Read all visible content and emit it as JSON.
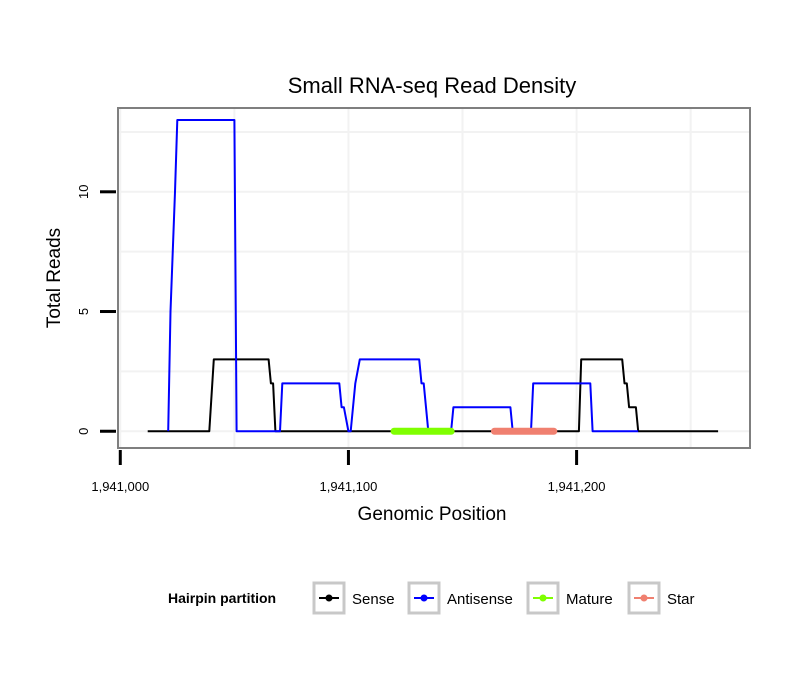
{
  "chart_data": {
    "type": "line",
    "title": "Small RNA-seq Read Density",
    "xlabel": "Genomic Position",
    "ylabel": "Total Reads",
    "xlim": [
      1940999,
      1941276
    ],
    "ylim": [
      -0.7,
      13.5
    ],
    "x_ticks": [
      {
        "value": 1941000,
        "label": "1,941,000"
      },
      {
        "value": 1941100,
        "label": "1,941,100"
      },
      {
        "value": 1941200,
        "label": "1,941,200"
      }
    ],
    "y_ticks": [
      {
        "value": 0,
        "label": "0"
      },
      {
        "value": 5,
        "label": "5"
      },
      {
        "value": 10,
        "label": "10"
      }
    ],
    "grid": true,
    "legend_title": "Hairpin partition",
    "legend_position": "bottom",
    "series": [
      {
        "name": "Sense",
        "color": "#000000",
        "kind": "line",
        "x": [
          1941012,
          1941039,
          1941041,
          1941065,
          1941066,
          1941067,
          1941068,
          1941070,
          1941201,
          1941202,
          1941220,
          1941221,
          1941222,
          1941223,
          1941224,
          1941226,
          1941227,
          1941262
        ],
        "y": [
          0,
          0,
          3,
          3,
          2,
          2,
          0,
          0,
          0,
          3,
          3,
          2,
          2,
          1,
          1,
          1,
          0,
          0
        ]
      },
      {
        "name": "Antisense",
        "color": "#0000ff",
        "kind": "line",
        "x": [
          1941021,
          1941022,
          1941024,
          1941025,
          1941050,
          1941051,
          1941066,
          1941070,
          1941071,
          1941096,
          1941097,
          1941098,
          1941100,
          1941101,
          1941103,
          1941105,
          1941106,
          1941131,
          1941132,
          1941133,
          1941135,
          1941145,
          1941146,
          1941171,
          1941172,
          1941180,
          1941181,
          1941206,
          1941207,
          1941227
        ],
        "y": [
          0,
          5,
          10,
          13,
          13,
          0,
          0,
          0,
          2,
          2,
          1,
          1,
          0,
          0,
          2,
          3,
          3,
          3,
          2,
          2,
          0,
          0,
          1,
          1,
          0,
          0,
          2,
          2,
          0,
          0
        ]
      },
      {
        "name": "Mature",
        "color": "#7fff00",
        "kind": "segment",
        "x": [
          1941120,
          1941145
        ],
        "y": [
          0,
          0
        ]
      },
      {
        "name": "Star",
        "color": "#f08070",
        "kind": "segment",
        "x": [
          1941164,
          1941190
        ],
        "y": [
          0,
          0
        ]
      }
    ]
  }
}
